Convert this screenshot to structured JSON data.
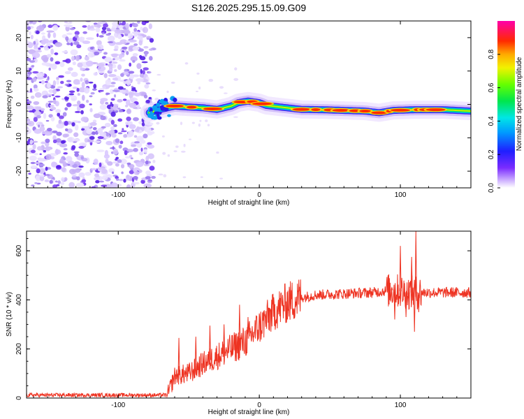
{
  "title": "S126.2025.295.15.09.G09",
  "colors": {
    "snr_line": "#ee3322",
    "spectro_noise": "#6a2ff0",
    "spectro_noise_light": "#c9b3f7"
  },
  "chart_data": [
    {
      "type": "heatmap",
      "name": "spectrogram",
      "xlabel": "Height of straight line (km)",
      "ylabel": "Frequency (Hz)",
      "xlim": [
        -165,
        150
      ],
      "ylim": [
        -25,
        25
      ],
      "xticks": [
        -100,
        0,
        100
      ],
      "xtick_labels": [
        "-100",
        "0",
        "100"
      ],
      "yticks": [
        -20,
        -10,
        0,
        10,
        20
      ],
      "ytick_labels": [
        "-20",
        "-10",
        "0",
        "10",
        "20"
      ],
      "noise_region_x": [
        -165,
        -75
      ],
      "signal_start_x": -78,
      "frequency_track": [
        {
          "x": -78,
          "y": -2.5
        },
        {
          "x": -70,
          "y": -1.5
        },
        {
          "x": -60,
          "y": -0.5
        },
        {
          "x": -50,
          "y": -0.8
        },
        {
          "x": -40,
          "y": -1.0
        },
        {
          "x": -30,
          "y": -1.5
        },
        {
          "x": -20,
          "y": -0.5
        },
        {
          "x": -15,
          "y": 0.5
        },
        {
          "x": -8,
          "y": 1.0
        },
        {
          "x": 0,
          "y": 0.5
        },
        {
          "x": 5,
          "y": -0.3
        },
        {
          "x": 15,
          "y": -0.8
        },
        {
          "x": 30,
          "y": -1.5
        },
        {
          "x": 45,
          "y": -1.6
        },
        {
          "x": 60,
          "y": -1.8
        },
        {
          "x": 75,
          "y": -2.0
        },
        {
          "x": 85,
          "y": -2.5
        },
        {
          "x": 95,
          "y": -1.8
        },
        {
          "x": 110,
          "y": -1.6
        },
        {
          "x": 130,
          "y": -1.6
        },
        {
          "x": 150,
          "y": -2.0
        }
      ],
      "colorbar": {
        "label": "Normalized spectral amplitude",
        "range": [
          0,
          1
        ],
        "ticks": [
          0.0,
          0.2,
          0.4,
          0.6,
          0.8
        ],
        "tick_labels": [
          "0.0",
          "0.2",
          "0.4",
          "0.6",
          "0.8"
        ]
      }
    },
    {
      "type": "line",
      "name": "snr",
      "xlabel": "Height of straight line (km)",
      "ylabel": "SNR (10 * v/v)",
      "xlim": [
        -165,
        150
      ],
      "ylim": [
        0,
        680
      ],
      "xticks": [
        -100,
        0,
        100
      ],
      "xtick_labels": [
        "-100",
        "0",
        "100"
      ],
      "yticks": [
        0,
        200,
        400,
        600
      ],
      "ytick_labels": [
        "0",
        "200",
        "400",
        "600"
      ],
      "series": [
        {
          "name": "SNR",
          "baseline_points": [
            {
              "x": -165,
              "y": 12
            },
            {
              "x": -65,
              "y": 12
            },
            {
              "x": -60,
              "y": 90
            },
            {
              "x": -50,
              "y": 100
            },
            {
              "x": -40,
              "y": 140
            },
            {
              "x": -30,
              "y": 170
            },
            {
              "x": -20,
              "y": 200
            },
            {
              "x": -10,
              "y": 230
            },
            {
              "x": 0,
              "y": 290
            },
            {
              "x": 10,
              "y": 350
            },
            {
              "x": 20,
              "y": 390
            },
            {
              "x": 30,
              "y": 410
            },
            {
              "x": 40,
              "y": 420
            },
            {
              "x": 60,
              "y": 425
            },
            {
              "x": 80,
              "y": 430
            },
            {
              "x": 95,
              "y": 440
            },
            {
              "x": 105,
              "y": 430
            },
            {
              "x": 120,
              "y": 430
            },
            {
              "x": 150,
              "y": 430
            }
          ],
          "spikes": [
            {
              "x": -57,
              "y": 245
            },
            {
              "x": -45,
              "y": 250
            },
            {
              "x": -35,
              "y": 295
            },
            {
              "x": -25,
              "y": 300
            },
            {
              "x": -14,
              "y": 380
            },
            {
              "x": -8,
              "y": 330
            },
            {
              "x": 94,
              "y": 450
            },
            {
              "x": 96,
              "y": 320
            },
            {
              "x": 100,
              "y": 620
            },
            {
              "x": 104,
              "y": 330
            },
            {
              "x": 106,
              "y": 380
            },
            {
              "x": 108,
              "y": 575
            },
            {
              "x": 110,
              "y": 270
            },
            {
              "x": 111,
              "y": 680
            },
            {
              "x": 113,
              "y": 350
            }
          ]
        }
      ]
    }
  ]
}
